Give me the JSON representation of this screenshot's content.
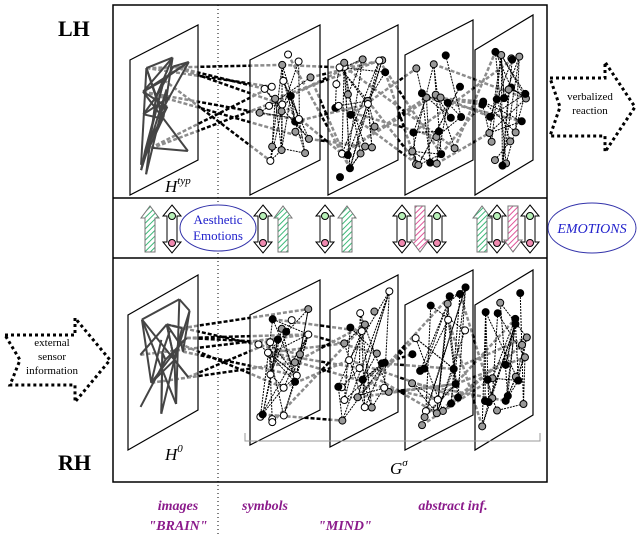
{
  "hemispheres": {
    "upper": "LH",
    "lower": "RH"
  },
  "output_arrow": {
    "lines": [
      "verbalized",
      "reaction"
    ]
  },
  "input_arrow": {
    "lines": [
      "external",
      "sensor",
      "information"
    ]
  },
  "upper_layer": {
    "base": "H",
    "sup": "typ"
  },
  "lower_layer": {
    "base": "H",
    "sup": "0"
  },
  "group_layer": {
    "base": "G",
    "sup": "σ"
  },
  "aesthetic": {
    "lines": [
      "Aesthetic",
      "Emotions"
    ]
  },
  "emotions": "EMOTIONS",
  "columns": {
    "images": "images",
    "symbols": "symbols",
    "abstract": "abstract inf."
  },
  "regions": {
    "brain": "\"BRAIN\"",
    "mind": "\"MIND\""
  }
}
